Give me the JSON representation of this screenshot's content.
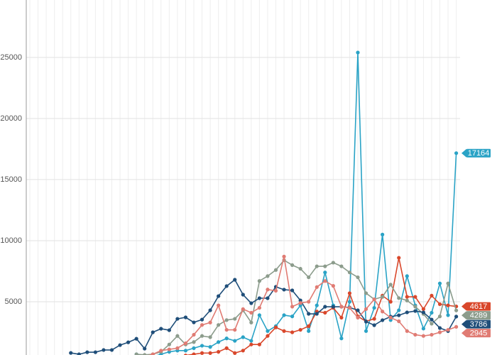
{
  "chart_data": {
    "type": "line",
    "categories": [
      null,
      null,
      null,
      null,
      null,
      null,
      null,
      null,
      null,
      null,
      null,
      null,
      null,
      null,
      null,
      null,
      null,
      null,
      null,
      null,
      null,
      null,
      null,
      null,
      null,
      null,
      null,
      null,
      null,
      null,
      null,
      null,
      null,
      null,
      null,
      null,
      null,
      null,
      null,
      null,
      null,
      null,
      null,
      null,
      null,
      null,
      null,
      null,
      null,
      null,
      null,
      null,
      null
    ],
    "ylim": [
      640,
      29700
    ],
    "yticks": [
      5000,
      10000,
      15000,
      20000,
      25000
    ],
    "grid": true,
    "series": [
      {
        "name": null,
        "color": "#2aa3c6",
        "values": [
          null,
          null,
          null,
          null,
          null,
          null,
          null,
          null,
          null,
          null,
          null,
          null,
          null,
          700,
          600,
          500,
          700,
          900,
          1000,
          1000,
          1200,
          1400,
          1300,
          1700,
          2000,
          1800,
          2100,
          1800,
          3900,
          2600,
          3000,
          3900,
          3800,
          4700,
          2600,
          4700,
          7400,
          4700,
          2000,
          5000,
          25400,
          2600,
          4500,
          10500,
          3500,
          4300,
          7100,
          4700,
          2800,
          4100,
          6500,
          3900,
          17164
        ]
      },
      {
        "name": null,
        "color": "#d9472b",
        "values": [
          null,
          null,
          null,
          null,
          null,
          null,
          null,
          null,
          null,
          null,
          null,
          null,
          null,
          null,
          null,
          null,
          null,
          null,
          500,
          600,
          700,
          800,
          800,
          900,
          1200,
          800,
          1000,
          1500,
          1500,
          2200,
          2900,
          2600,
          2500,
          2700,
          3000,
          4200,
          4100,
          4500,
          3700,
          5700,
          3800,
          3400,
          3600,
          5500,
          5000,
          8600,
          5400,
          5400,
          4400,
          5500,
          4800,
          4700,
          4617
        ]
      },
      {
        "name": null,
        "color": "#8c9c8c",
        "values": [
          null,
          null,
          null,
          null,
          null,
          null,
          null,
          null,
          null,
          null,
          null,
          null,
          null,
          700,
          650,
          700,
          900,
          1500,
          2200,
          1500,
          1700,
          2200,
          2100,
          3100,
          3500,
          3600,
          4300,
          3300,
          6700,
          7100,
          7600,
          8400,
          8000,
          7700,
          7000,
          7900,
          7900,
          8200,
          7900,
          7400,
          7000,
          5700,
          5200,
          5400,
          6400,
          5300,
          5100,
          4600,
          4000,
          3200,
          3800,
          6500,
          4289
        ]
      },
      {
        "name": null,
        "color": "#1f4e79",
        "values": [
          null,
          null,
          null,
          null,
          null,
          810,
          700,
          870,
          870,
          1050,
          1050,
          1450,
          1680,
          1970,
          1160,
          2500,
          2790,
          2670,
          3600,
          3720,
          3310,
          3540,
          4300,
          5460,
          6280,
          6800,
          5580,
          4880,
          5290,
          5290,
          6220,
          5990,
          5930,
          5110,
          4010,
          4010,
          4590,
          4590,
          4590,
          4530,
          4300,
          3370,
          3080,
          3490,
          3780,
          3890,
          4130,
          4240,
          4130,
          3540,
          2850,
          2600,
          3786
        ]
      },
      {
        "name": null,
        "color": "#e07b73",
        "values": [
          null,
          null,
          null,
          null,
          null,
          null,
          null,
          null,
          null,
          null,
          null,
          null,
          null,
          400,
          500,
          700,
          1000,
          1100,
          1200,
          1600,
          2300,
          3100,
          3300,
          4700,
          2700,
          2700,
          4400,
          4100,
          4500,
          6000,
          5900,
          8700,
          4600,
          4900,
          5000,
          6200,
          6700,
          6300,
          4600,
          4500,
          3700,
          4400,
          5200,
          4200,
          3700,
          3400,
          2600,
          2300,
          2200,
          2300,
          2500,
          2700,
          2945
        ]
      }
    ]
  }
}
